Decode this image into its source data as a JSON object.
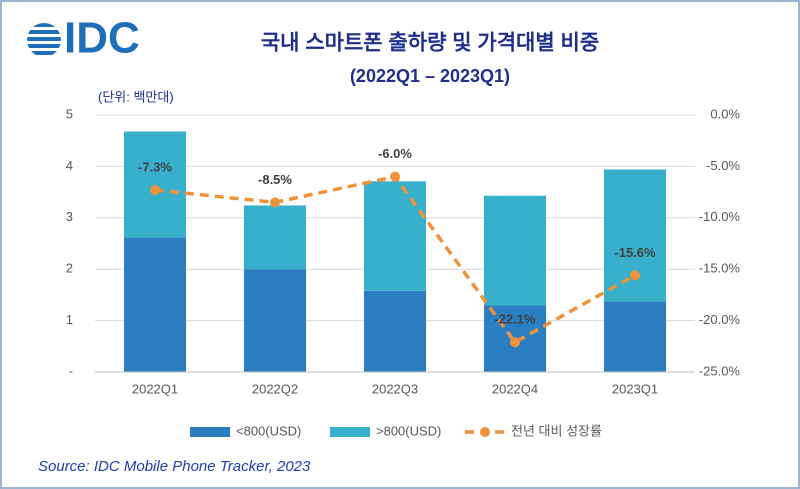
{
  "logo": "IDC",
  "chart_data": {
    "type": "bar",
    "stacked": true,
    "title": "국내 스마트폰 출하량 및 가격대별 비중",
    "subtitle": "(2022Q1 – 2023Q1)",
    "unit_label": "(단위: 백만대)",
    "source": "Source: IDC Mobile Phone Tracker, 2023",
    "categories": [
      "2022Q1",
      "2022Q2",
      "2022Q3",
      "2022Q4",
      "2023Q1"
    ],
    "series": [
      {
        "name": "<800(USD)",
        "type": "bar",
        "color": "#2a7fc2",
        "values": [
          2.62,
          2.0,
          1.58,
          1.3,
          1.37
        ]
      },
      {
        "name": ">800(USD)",
        "type": "bar",
        "color": "#38b0cb",
        "values": [
          2.06,
          1.24,
          2.13,
          2.13,
          2.57
        ]
      },
      {
        "name": "전년 대비 성장률",
        "type": "line",
        "axis": "y2",
        "color": "#f0923a",
        "values": [
          -7.3,
          -8.5,
          -6.0,
          -22.1,
          -15.6
        ],
        "value_labels": [
          "-7.3%",
          "-8.5%",
          "-6.0%",
          "-22.1%",
          "-15.6%"
        ]
      }
    ],
    "ylim": [
      0,
      5
    ],
    "yticks": [
      {
        "value": 0,
        "label": "-"
      },
      1,
      2,
      3,
      4,
      5
    ],
    "y2lim": [
      -25,
      0
    ],
    "y2ticks": [
      {
        "value": 0,
        "label": "0.0%"
      },
      {
        "value": -5,
        "label": "-5.0%"
      },
      {
        "value": -10,
        "label": "-10.0%"
      },
      {
        "value": -15,
        "label": "-15.0%"
      },
      {
        "value": -20,
        "label": "-20.0%"
      },
      {
        "value": -25,
        "label": "-25.0%"
      }
    ],
    "grid": true
  }
}
